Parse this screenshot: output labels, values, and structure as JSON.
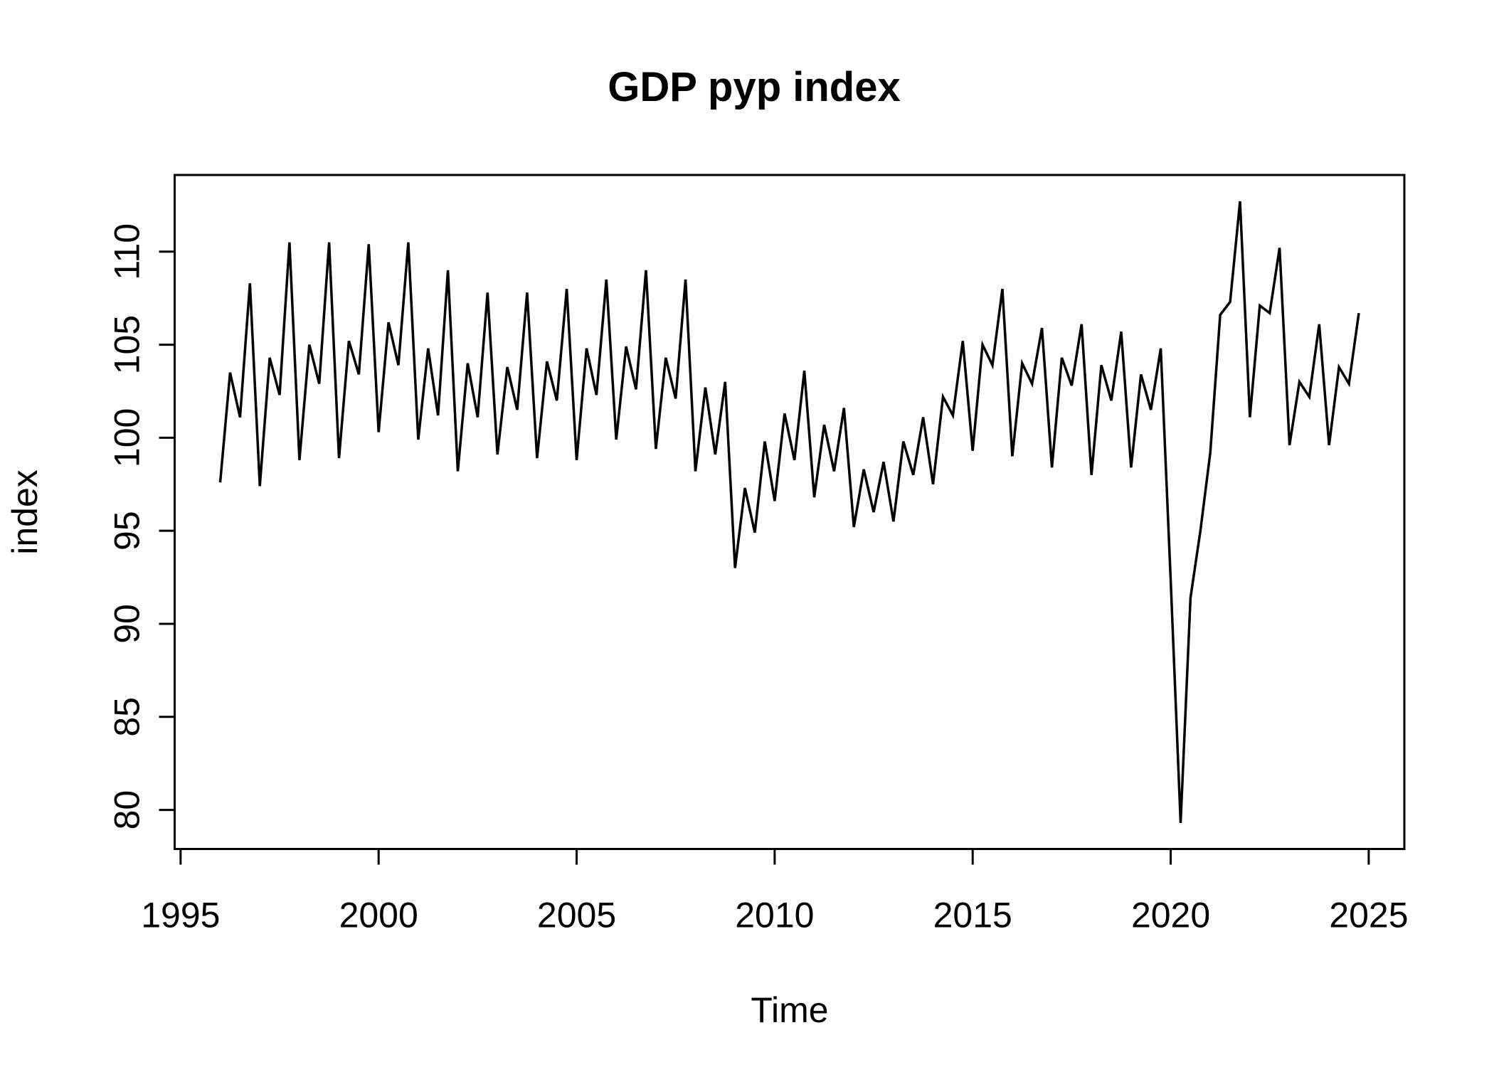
{
  "title": "GDP pyp index",
  "chart_data": {
    "type": "line",
    "title": "GDP pyp index",
    "xlabel": "Time",
    "ylabel": "index",
    "legend": null,
    "grid": false,
    "line_color": "#000000",
    "background": "#ffffff",
    "xlim": [
      1994.85,
      2025.9
    ],
    "ylim": [
      77.9,
      114.12
    ],
    "x_ticks": [
      1995,
      2000,
      2005,
      2010,
      2015,
      2020,
      2025
    ],
    "y_ticks": [
      80,
      85,
      90,
      95,
      100,
      105,
      110
    ],
    "x_start": 1996.0,
    "x_step": 0.25,
    "frequency": "quarterly",
    "values": [
      97.6,
      103.5,
      101.1,
      108.3,
      97.4,
      104.3,
      102.3,
      110.5,
      98.8,
      105.0,
      102.9,
      110.5,
      98.9,
      105.2,
      103.4,
      110.4,
      100.3,
      106.2,
      103.9,
      110.5,
      99.9,
      104.8,
      101.2,
      109.0,
      98.2,
      104.0,
      101.1,
      107.8,
      99.1,
      103.8,
      101.5,
      107.8,
      98.9,
      104.1,
      102.0,
      108.0,
      98.8,
      104.8,
      102.3,
      108.5,
      99.9,
      104.9,
      102.6,
      109.0,
      99.4,
      104.3,
      102.1,
      108.5,
      98.2,
      102.7,
      99.1,
      103.0,
      93.0,
      97.3,
      94.9,
      99.8,
      96.6,
      101.3,
      98.8,
      103.6,
      96.8,
      100.7,
      98.2,
      101.6,
      95.2,
      98.3,
      96.0,
      98.7,
      95.5,
      99.8,
      98.0,
      101.1,
      97.5,
      102.2,
      101.2,
      105.2,
      99.3,
      105.0,
      103.9,
      108.0,
      99.0,
      104.0,
      102.9,
      105.9,
      98.4,
      104.3,
      102.8,
      106.1,
      98.0,
      103.9,
      102.0,
      105.7,
      98.4,
      103.4,
      101.5,
      104.8,
      92.3,
      79.3,
      91.4,
      95.0,
      99.2,
      106.6,
      107.3,
      112.7,
      101.1,
      107.1,
      106.7,
      110.2,
      99.6,
      103.0,
      102.2,
      106.1,
      99.6,
      103.8,
      102.9,
      106.7
    ]
  }
}
